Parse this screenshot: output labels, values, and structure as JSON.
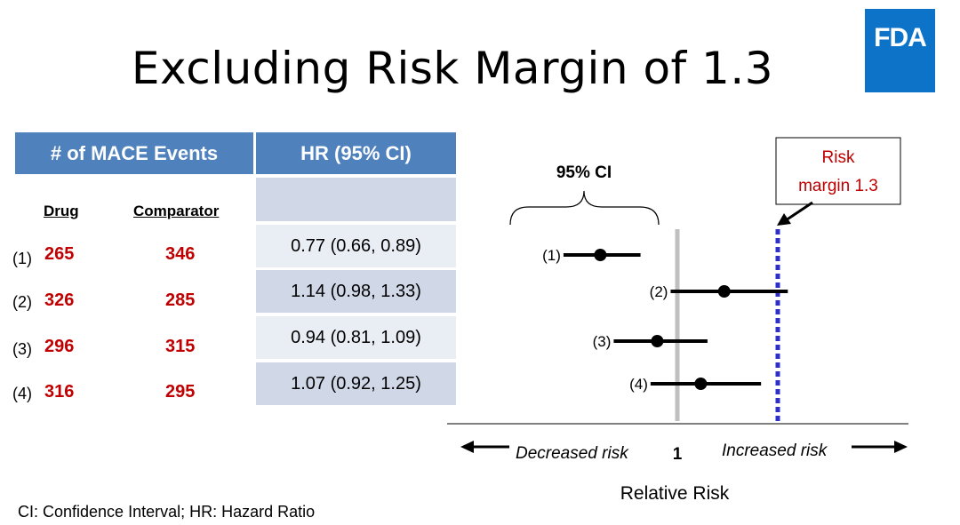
{
  "slide": {
    "title": "Excluding Risk Margin of 1.3",
    "logo_text": "FDA"
  },
  "table": {
    "header_events": "# of MACE Events",
    "header_hr": "HR (95% CI)",
    "col_drug": "Drug",
    "col_comparator": "Comparator",
    "rows": [
      {
        "label": "(1)",
        "drug": "265",
        "comparator": "346",
        "hr": "0.77 (0.66, 0.89)"
      },
      {
        "label": "(2)",
        "drug": "326",
        "comparator": "285",
        "hr": "1.14 (0.98, 1.33)"
      },
      {
        "label": "(3)",
        "drug": "296",
        "comparator": "315",
        "hr": "0.94 (0.81, 1.09)"
      },
      {
        "label": "(4)",
        "drug": "316",
        "comparator": "295",
        "hr": "1.07 (0.92, 1.25)"
      }
    ]
  },
  "forest": {
    "ci_label": "95% CI",
    "margin_label_line1": "Risk",
    "margin_label_line2": "margin 1.3",
    "decreased_label": "Decreased risk",
    "increased_label": "Increased risk",
    "one_label": "1",
    "axis_label": "Relative Risk"
  },
  "chart_data": {
    "type": "scatter",
    "null_value": 1,
    "risk_margin": 1.3,
    "points": [
      {
        "label": "(1)",
        "hr": 0.77,
        "lo": 0.66,
        "hi": 0.89
      },
      {
        "label": "(2)",
        "hr": 1.14,
        "lo": 0.98,
        "hi": 1.33
      },
      {
        "label": "(3)",
        "hr": 0.94,
        "lo": 0.81,
        "hi": 1.09
      },
      {
        "label": "(4)",
        "hr": 1.07,
        "lo": 0.92,
        "hi": 1.25
      }
    ],
    "colors": {
      "null_line": "#bfbfbf",
      "margin_line": "#2e2ec8",
      "margin_text": "#c00000",
      "values": "#c00000"
    }
  },
  "footnote": "CI: Confidence Interval; HR: Hazard Ratio"
}
